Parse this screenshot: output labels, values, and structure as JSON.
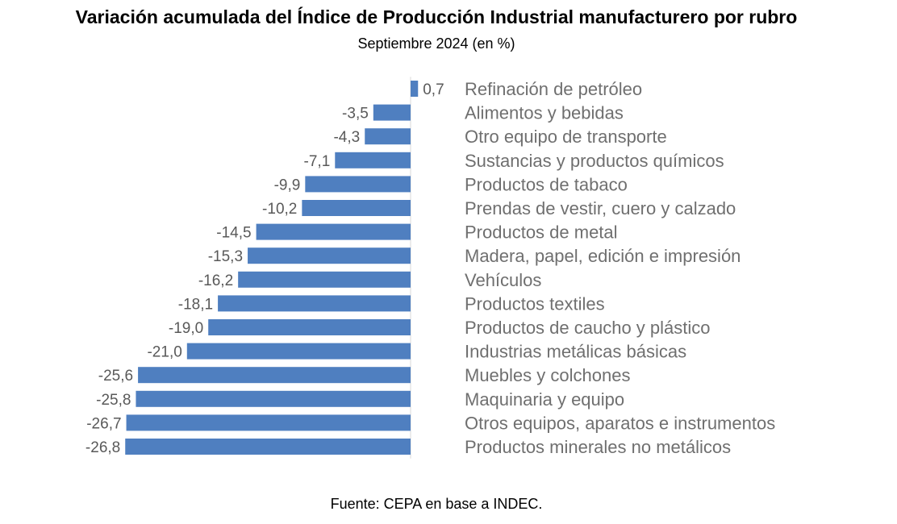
{
  "chart_data": {
    "type": "bar",
    "orientation": "horizontal",
    "title": "Variación acumulada del Índice de Producción Industrial manufacturero por rubro",
    "subtitle": "Septiembre 2024 (en %)",
    "source": "Fuente: CEPA en base a INDEC.",
    "categories": [
      "Refinación de petróleo",
      "Alimentos y bebidas",
      "Otro equipo de transporte",
      "Sustancias y productos químicos",
      "Productos de tabaco",
      "Prendas de vestir, cuero y calzado",
      "Productos de metal",
      "Madera, papel, edición e impresión",
      "Vehículos",
      "Productos textiles",
      "Productos de caucho y plástico",
      "Industrias metálicas básicas",
      "Muebles y colchones",
      "Maquinaria y equipo",
      "Otros equipos, aparatos e instrumentos",
      "Productos minerales no metálicos"
    ],
    "values": [
      0.7,
      -3.5,
      -4.3,
      -7.1,
      -9.9,
      -10.2,
      -14.5,
      -15.3,
      -16.2,
      -18.1,
      -19.0,
      -21.0,
      -25.6,
      -25.8,
      -26.7,
      -26.8
    ],
    "value_labels": [
      "0,7",
      "-3,5",
      "-4,3",
      "-7,1",
      "-9,9",
      "-10,2",
      "-14,5",
      "-15,3",
      "-16,2",
      "-18,1",
      "-19,0",
      "-21,0",
      "-25,6",
      "-25,8",
      "-26,7",
      "-26,8"
    ],
    "xlim": [
      -26.8,
      0.7
    ],
    "grid": false,
    "legend": "none",
    "color": "#4f7fc0"
  }
}
